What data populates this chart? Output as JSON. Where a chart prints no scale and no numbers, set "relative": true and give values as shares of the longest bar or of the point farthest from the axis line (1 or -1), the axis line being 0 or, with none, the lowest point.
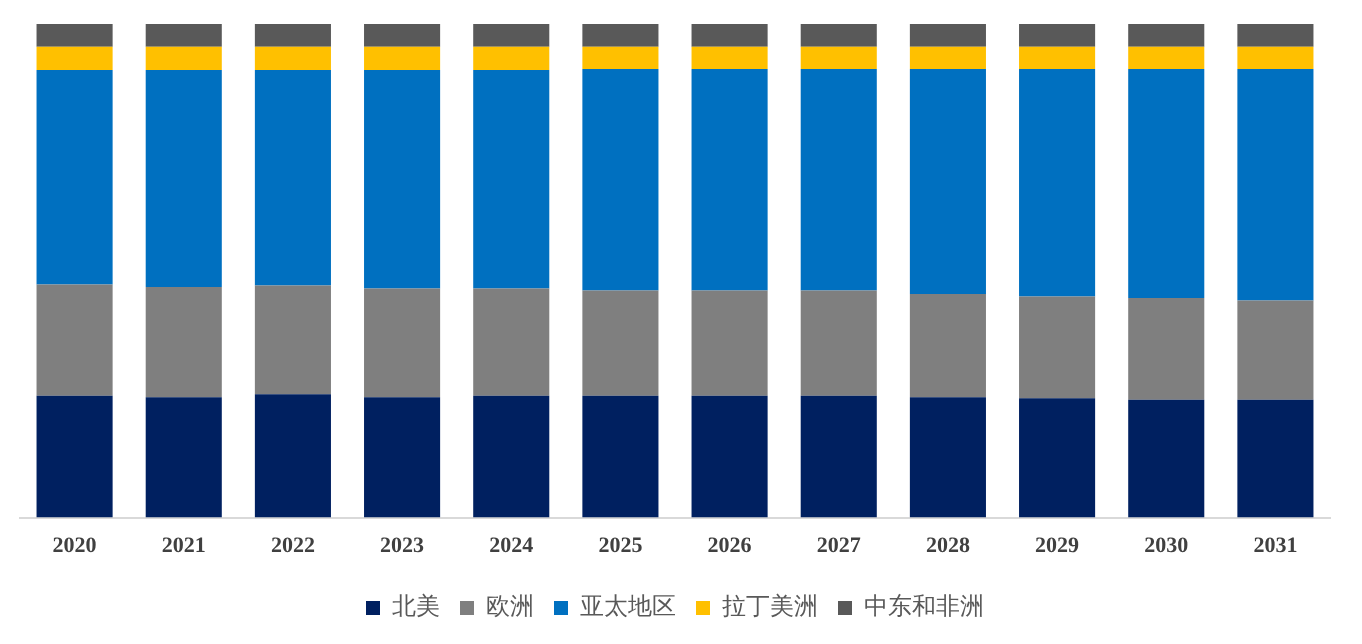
{
  "chart_data": {
    "type": "bar",
    "stacked": true,
    "relative": true,
    "legend": "bottom",
    "grid": false,
    "categories": [
      "2020",
      "2021",
      "2022",
      "2023",
      "2024",
      "2025",
      "2026",
      "2027",
      "2028",
      "2029",
      "2030",
      "2031"
    ],
    "series": [
      {
        "name": "北美",
        "color": "#002060",
        "values": [
          0.247,
          0.244,
          0.25,
          0.244,
          0.247,
          0.247,
          0.247,
          0.247,
          0.244,
          0.242,
          0.239,
          0.239
        ]
      },
      {
        "name": "欧洲",
        "color": "#7f7f7f",
        "values": [
          0.225,
          0.223,
          0.22,
          0.22,
          0.217,
          0.213,
          0.213,
          0.213,
          0.209,
          0.206,
          0.206,
          0.201
        ]
      },
      {
        "name": "亚太地区",
        "color": "#0070c0",
        "values": [
          0.435,
          0.44,
          0.437,
          0.443,
          0.443,
          0.449,
          0.449,
          0.449,
          0.456,
          0.461,
          0.464,
          0.469
        ]
      },
      {
        "name": "拉丁美洲",
        "color": "#ffc000",
        "values": [
          0.047,
          0.047,
          0.047,
          0.047,
          0.047,
          0.045,
          0.045,
          0.045,
          0.045,
          0.045,
          0.045,
          0.045
        ]
      },
      {
        "name": "中东和非洲",
        "color": "#595959",
        "values": [
          0.046,
          0.046,
          0.046,
          0.046,
          0.046,
          0.046,
          0.046,
          0.046,
          0.046,
          0.046,
          0.046,
          0.046
        ]
      }
    ]
  }
}
